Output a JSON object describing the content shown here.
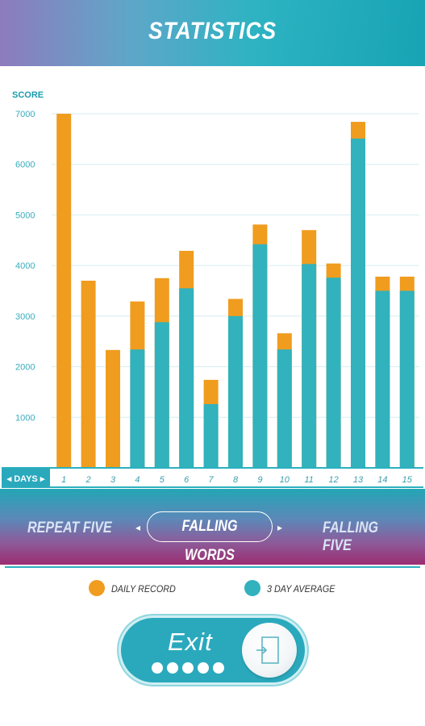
{
  "header": {
    "title": "STATISTICS"
  },
  "chart_data": {
    "type": "bar",
    "ylabel": "SCORE",
    "xlabel": "DAYS",
    "ylim": [
      0,
      7000
    ],
    "yticks": [
      1000,
      2000,
      3000,
      4000,
      5000,
      6000,
      7000
    ],
    "categories": [
      "1",
      "2",
      "3",
      "4",
      "5",
      "6",
      "7",
      "8",
      "9",
      "10",
      "11",
      "12",
      "13",
      "14",
      "15"
    ],
    "grid": true,
    "series": [
      {
        "name": "DAILY RECORD",
        "color": "#f09c1f",
        "values": [
          7000,
          3700,
          2330,
          3290,
          3750,
          4290,
          1740,
          3340,
          4810,
          2660,
          4700,
          4040,
          6840,
          3780,
          3780
        ]
      },
      {
        "name": "3 DAY AVERAGE",
        "color": "#31b2bc",
        "values": [
          0,
          0,
          0,
          2340,
          2880,
          3550,
          1260,
          3000,
          4420,
          2340,
          4030,
          3760,
          6510,
          3500,
          3500
        ]
      }
    ],
    "legend_position": "bottom"
  },
  "modes": {
    "left": "REPEAT FIVE",
    "center": "FALLING WORDS",
    "right": "FALLING FIVE",
    "arrow_left": "◂",
    "arrow_right": "▸"
  },
  "legend": {
    "daily_record": "DAILY RECORD",
    "three_day_average": "3 DAY AVERAGE"
  },
  "colors": {
    "accent": "#2aa9bd",
    "orange": "#f09c1f",
    "teal": "#31b2bc"
  },
  "exit_button": {
    "label": "Exit",
    "icon": "exit-door-icon",
    "progress_dots": 5
  }
}
